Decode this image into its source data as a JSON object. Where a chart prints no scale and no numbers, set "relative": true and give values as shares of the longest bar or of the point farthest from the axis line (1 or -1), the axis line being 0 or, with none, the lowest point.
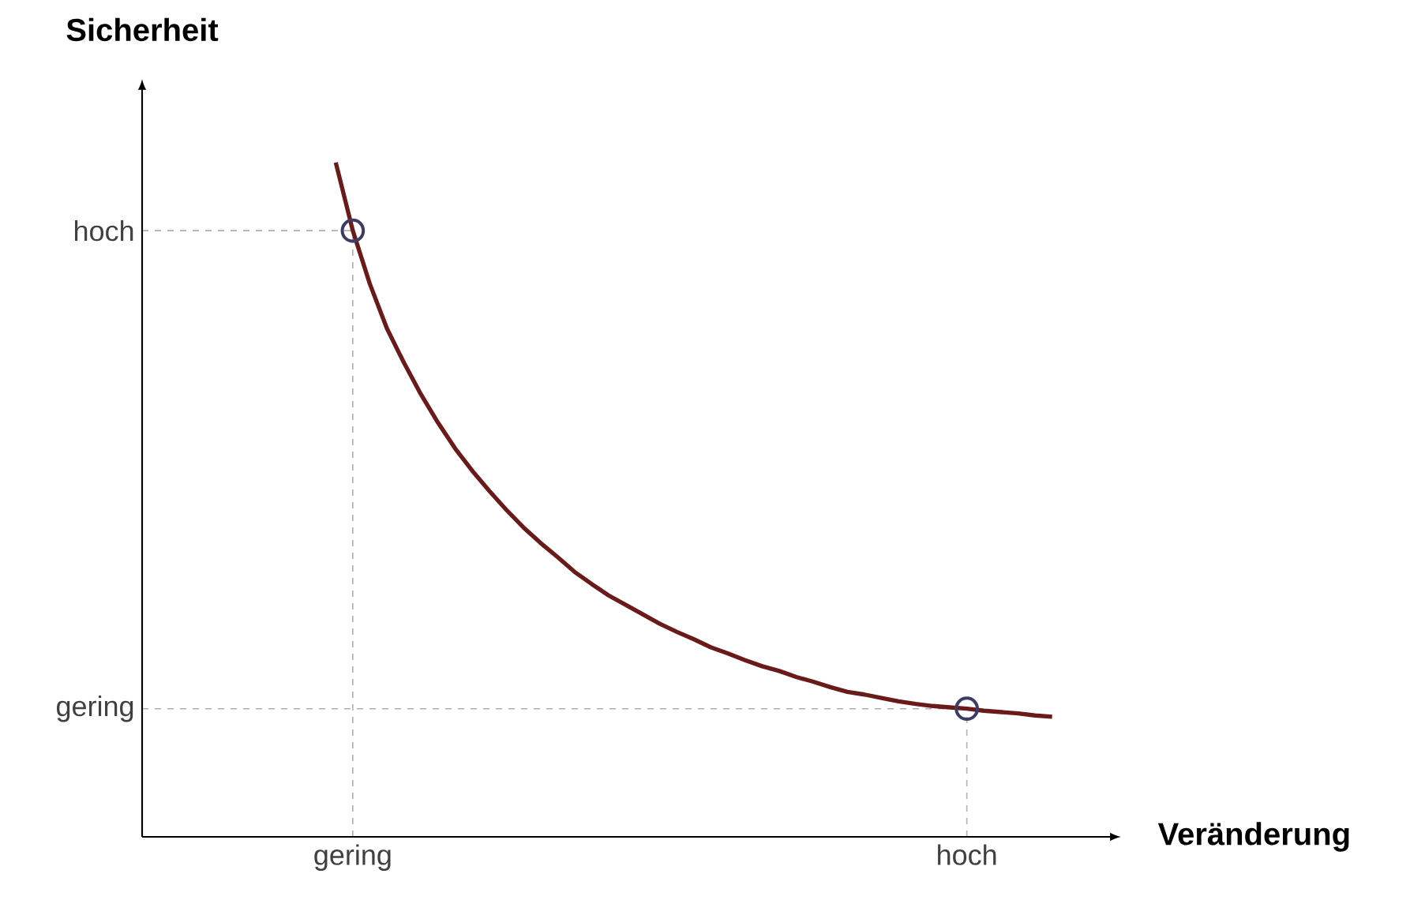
{
  "chart_data": {
    "type": "line",
    "xlabel": "Veränderung",
    "ylabel": "Sicherheit",
    "relative": true,
    "grid": "x",
    "categories": [
      null,
      "gering",
      null,
      null,
      null,
      null,
      null,
      null,
      null,
      null,
      null,
      null,
      null,
      null,
      null,
      null,
      null,
      null,
      null,
      null,
      null,
      null,
      null,
      null,
      null,
      null,
      null,
      null,
      null,
      null,
      null,
      null,
      null,
      null,
      null,
      null,
      null,
      "hoch",
      null,
      null,
      null,
      null,
      null
    ],
    "ref_lines": [
      {
        "axis": "y",
        "value": 0.899,
        "label": "hoch",
        "color": "#b0b0b0",
        "line_style": "dashed"
      },
      {
        "axis": "y",
        "value": 0.19,
        "label": "gering",
        "color": "#b0b0b0",
        "line_style": "dashed"
      }
    ],
    "series": [
      {
        "color": "#6b1a1a",
        "values": [
          1.0,
          0.899,
          0.82,
          0.754,
          0.703,
          0.656,
          0.614,
          0.576,
          0.543,
          0.513,
          0.485,
          0.459,
          0.436,
          0.415,
          0.393,
          0.375,
          0.358,
          0.344,
          0.33,
          0.316,
          0.304,
          0.293,
          0.281,
          0.272,
          0.262,
          0.253,
          0.246,
          0.237,
          0.23,
          0.222,
          0.215,
          0.211,
          0.206,
          0.201,
          0.197,
          0.194,
          0.192,
          0.19,
          0.187,
          0.185,
          0.183,
          0.18,
          0.178
        ]
      },
      {
        "type": "scatter",
        "color": "#3c3c64",
        "marker": "circle",
        "values": [
          null,
          0.899,
          null,
          null,
          null,
          null,
          null,
          null,
          null,
          null,
          null,
          null,
          null,
          null,
          null,
          null,
          null,
          null,
          null,
          null,
          null,
          null,
          null,
          null,
          null,
          null,
          null,
          null,
          null,
          null,
          null,
          null,
          null,
          null,
          null,
          null,
          null,
          0.19,
          null,
          null,
          null,
          null,
          null
        ]
      }
    ]
  }
}
